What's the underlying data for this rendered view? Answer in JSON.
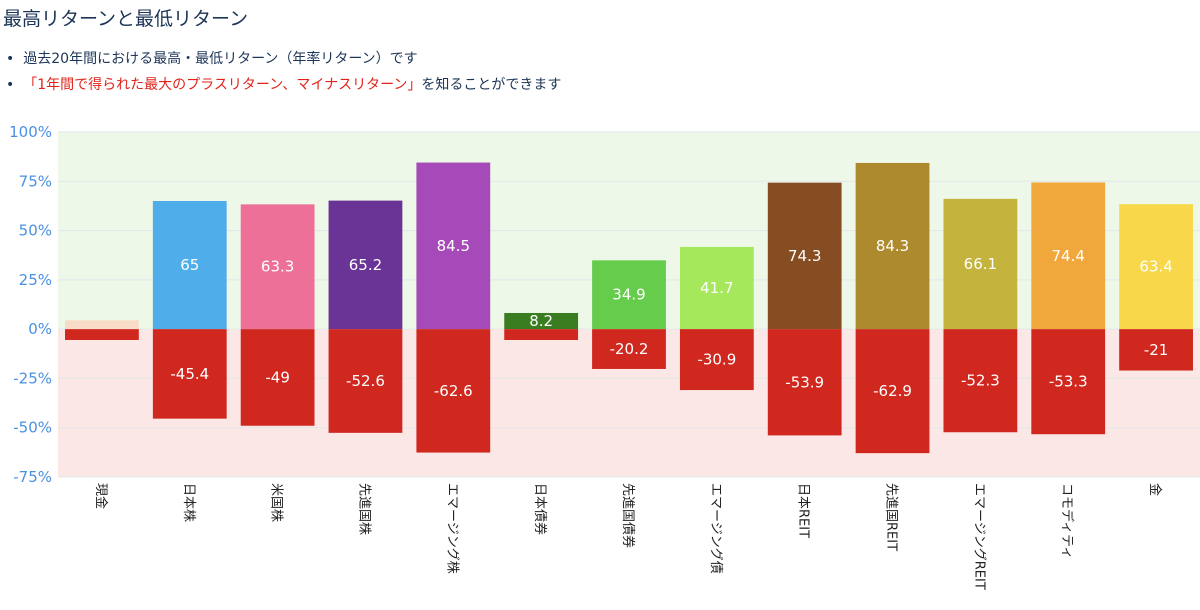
{
  "page": {
    "title": "最高リターンと最低リターン",
    "bullet1": "過去20年間における最高・最低リターン（年率リターン）です",
    "bullet2_red": "「1年間で得られた最大のプラスリターン、マイナスリターン」",
    "bullet2_rest": "を知ることができます"
  },
  "chart_data": {
    "type": "bar",
    "ylim": [
      -75,
      100
    ],
    "yticks": [
      "100%",
      "75%",
      "50%",
      "25%",
      "0%",
      "-25%",
      "-50%",
      "-75%"
    ],
    "ytick_values": [
      100,
      75,
      50,
      25,
      0,
      -25,
      -50,
      -75
    ],
    "grid": true,
    "categories": [
      "現金",
      "日本株",
      "米国株",
      "先進国株",
      "エマージング株",
      "日本債券",
      "先進国債券",
      "エマージング債",
      "日本REIT",
      "先進国REIT",
      "エマージングREIT",
      "コモディティ",
      "金"
    ],
    "series": [
      {
        "values": [
          4.5,
          65,
          63.3,
          65.2,
          84.5,
          8.2,
          34.9,
          41.7,
          74.3,
          84.3,
          66.1,
          74.4,
          63.4
        ],
        "labels": [
          "",
          "65",
          "63.3",
          "65.2",
          "84.5",
          "8.2",
          "34.9",
          "41.7",
          "74.3",
          "84.3",
          "66.1",
          "74.4",
          "63.4"
        ],
        "colors": [
          "#f8dcc8",
          "#4fadea",
          "#ec7097",
          "#6a3396",
          "#a54ab8",
          "#3a7d20",
          "#66cc4c",
          "#a6e85c",
          "#864c22",
          "#ae8a2e",
          "#c4b43e",
          "#f0a83c",
          "#f8d84a"
        ]
      },
      {
        "values": [
          -5.5,
          -45.4,
          -49,
          -52.6,
          -62.6,
          -5.5,
          -20.2,
          -30.9,
          -53.9,
          -62.9,
          -52.3,
          -53.3,
          -21
        ],
        "labels": [
          "",
          "-45.4",
          "-49",
          "-52.6",
          "-62.6",
          "",
          "-20.2",
          "-30.9",
          "-53.9",
          "-62.9",
          "-52.3",
          "-53.3",
          "-21"
        ],
        "color": "#d0271f"
      }
    ],
    "background": {
      "positive": "#eef8e8",
      "negative": "#fbe8e6"
    }
  }
}
